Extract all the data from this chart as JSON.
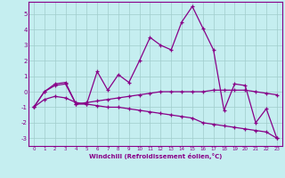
{
  "xlabel": "Windchill (Refroidissement éolien,°C)",
  "bg_color": "#c5eef0",
  "line_color": "#880088",
  "grid_color": "#a0cccc",
  "xlim": [
    -0.5,
    23.5
  ],
  "ylim": [
    -3.5,
    5.8
  ],
  "xticks": [
    0,
    1,
    2,
    3,
    4,
    5,
    6,
    7,
    8,
    9,
    10,
    11,
    12,
    13,
    14,
    15,
    16,
    17,
    18,
    19,
    20,
    21,
    22,
    23
  ],
  "yticks": [
    -3,
    -2,
    -1,
    0,
    1,
    2,
    3,
    4,
    5
  ],
  "line1_x": [
    0,
    1,
    2,
    3,
    4,
    5,
    6,
    7,
    8,
    9,
    10,
    11,
    12,
    13,
    14,
    15,
    16,
    17,
    18,
    19,
    20,
    21,
    22,
    23
  ],
  "line1_y": [
    -1.0,
    0.0,
    0.5,
    0.6,
    -0.8,
    -0.8,
    1.3,
    0.1,
    1.1,
    0.6,
    2.0,
    3.5,
    3.0,
    2.7,
    4.5,
    5.5,
    4.1,
    2.7,
    -1.2,
    0.5,
    0.4,
    -2.0,
    -1.1,
    -3.0
  ],
  "line2_x": [
    0,
    1,
    2,
    3,
    4,
    5,
    6,
    7,
    8,
    9,
    10,
    11,
    12,
    13,
    14,
    15,
    16,
    17,
    18,
    19,
    20,
    21,
    22,
    23
  ],
  "line2_y": [
    -1.0,
    0.0,
    0.4,
    0.5,
    -0.8,
    -0.7,
    -0.6,
    -0.5,
    -0.4,
    -0.3,
    -0.2,
    -0.1,
    0.0,
    0.0,
    0.0,
    0.0,
    0.0,
    0.1,
    0.1,
    0.1,
    0.1,
    0.0,
    -0.1,
    -0.2
  ],
  "line3_x": [
    0,
    1,
    2,
    3,
    4,
    5,
    6,
    7,
    8,
    9,
    10,
    11,
    12,
    13,
    14,
    15,
    16,
    17,
    18,
    19,
    20,
    21,
    22,
    23
  ],
  "line3_y": [
    -1.0,
    -0.5,
    -0.3,
    -0.4,
    -0.7,
    -0.8,
    -0.9,
    -1.0,
    -1.0,
    -1.1,
    -1.2,
    -1.3,
    -1.4,
    -1.5,
    -1.6,
    -1.7,
    -2.0,
    -2.1,
    -2.2,
    -2.3,
    -2.4,
    -2.5,
    -2.6,
    -3.0
  ]
}
